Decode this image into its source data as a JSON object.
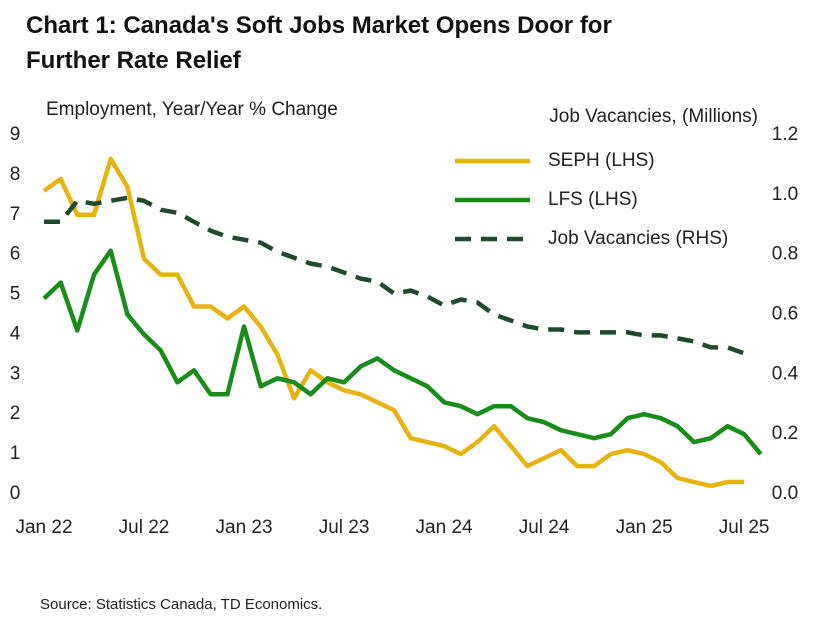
{
  "chart_data": {
    "type": "line",
    "title": "Chart 1: Canada's Soft Jobs Market Opens Door for Further Rate Relief",
    "ylabel": "Employment, Year/Year % Change",
    "y2label": "Job Vacancies, (Millions)",
    "source": "Source: Statistics Canada, TD Economics.",
    "legend": "upper right",
    "categories": [
      "Jan 22",
      null,
      null,
      null,
      null,
      null,
      "Jul 22",
      null,
      null,
      null,
      null,
      null,
      "Jan 23",
      null,
      null,
      null,
      null,
      null,
      "Jul 23",
      null,
      null,
      null,
      null,
      null,
      "Jan 24",
      null,
      null,
      null,
      null,
      null,
      "Jul 24",
      null,
      null,
      null,
      null,
      null,
      "Jan 25",
      null,
      null,
      null,
      null,
      null,
      "Jul 25",
      null
    ],
    "ylim": [
      0,
      9
    ],
    "yticks": [
      0,
      1,
      2,
      3,
      4,
      5,
      6,
      7,
      8,
      9
    ],
    "y2lim": [
      0,
      1.2
    ],
    "y2ticks": [
      {
        "value": 0,
        "label": "0.0"
      },
      0.2,
      0.4,
      0.6,
      0.8,
      {
        "value": 1,
        "label": "1.0"
      },
      1.2
    ],
    "series": [
      {
        "name": "SEPH (LHS)",
        "color": "#e6b311",
        "dash": false,
        "values": [
          7.6,
          7.9,
          7.0,
          7.0,
          8.4,
          7.7,
          5.9,
          5.5,
          5.5,
          4.7,
          4.7,
          4.4,
          4.7,
          4.2,
          3.5,
          2.4,
          3.1,
          2.8,
          2.6,
          2.5,
          2.3,
          2.1,
          1.4,
          1.3,
          1.2,
          1.0,
          1.3,
          1.7,
          1.2,
          0.7,
          0.9,
          1.1,
          0.7,
          0.7,
          1.0,
          1.1,
          1.0,
          0.8,
          0.4,
          0.3,
          0.2,
          0.3,
          0.3,
          null
        ]
      },
      {
        "name": "LFS (LHS)",
        "color": "#198c19",
        "dash": false,
        "values": [
          4.9,
          5.3,
          4.1,
          5.5,
          6.1,
          4.5,
          4.0,
          3.6,
          2.8,
          3.1,
          2.5,
          2.5,
          4.2,
          2.7,
          2.9,
          2.8,
          2.5,
          2.9,
          2.8,
          3.2,
          3.4,
          3.1,
          2.9,
          2.7,
          2.3,
          2.2,
          2.0,
          2.2,
          2.2,
          1.9,
          1.8,
          1.6,
          1.5,
          1.4,
          1.5,
          1.9,
          2.0,
          1.9,
          1.7,
          1.3,
          1.4,
          1.7,
          1.5,
          1.0
        ]
      },
      {
        "name": "Job Vacancies (RHS)",
        "color": "#1f4a2c",
        "dash": true,
        "axis": "y2",
        "values": [
          0.91,
          0.91,
          0.98,
          0.97,
          0.98,
          0.99,
          0.98,
          0.95,
          0.94,
          0.91,
          0.88,
          0.86,
          0.85,
          0.84,
          0.81,
          0.79,
          0.77,
          0.76,
          0.74,
          0.72,
          0.71,
          0.67,
          0.68,
          0.66,
          0.63,
          0.65,
          0.64,
          0.6,
          0.58,
          0.56,
          0.55,
          0.55,
          0.54,
          0.54,
          0.54,
          0.54,
          0.53,
          0.53,
          0.52,
          0.51,
          0.49,
          0.49,
          0.47,
          null
        ]
      }
    ]
  }
}
